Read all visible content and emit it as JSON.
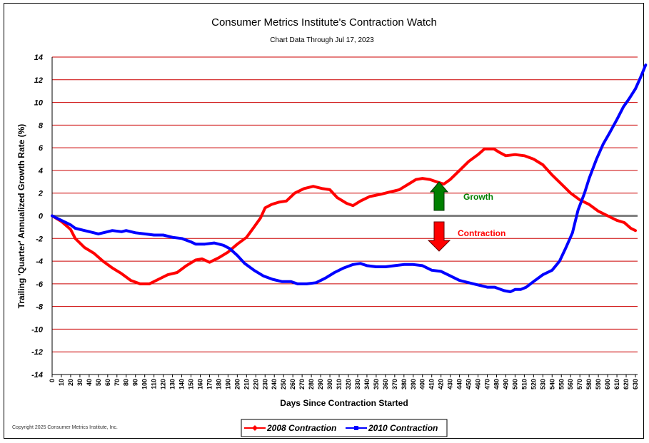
{
  "chart_data": {
    "type": "line",
    "title": "Consumer Metrics Institute's Contraction Watch",
    "subtitle": "Chart Data Through Jul 17, 2023",
    "xlabel": "Days Since Contraction Started",
    "ylabel": "Trailing 'Quarter' Annualized Growth Rate (%)",
    "xlim": [
      0,
      630
    ],
    "ylim": [
      -14,
      14
    ],
    "yticks": [
      14,
      12,
      10,
      8,
      6,
      4,
      2,
      0,
      -2,
      -4,
      -6,
      -8,
      -10,
      -12,
      -14
    ],
    "x_tick_step": 10,
    "grid": true,
    "legend_position": "bottom-center",
    "annotations": {
      "growth": "Growth",
      "contraction": "Contraction"
    },
    "series": [
      {
        "name": "2008 Contraction",
        "color": "#ff0000",
        "points": [
          [
            0,
            0
          ],
          [
            10,
            -0.5
          ],
          [
            20,
            -1.2
          ],
          [
            25,
            -2.0
          ],
          [
            35,
            -2.8
          ],
          [
            45,
            -3.3
          ],
          [
            55,
            -4.0
          ],
          [
            65,
            -4.6
          ],
          [
            75,
            -5.1
          ],
          [
            85,
            -5.7
          ],
          [
            95,
            -6.0
          ],
          [
            105,
            -6.0
          ],
          [
            115,
            -5.6
          ],
          [
            125,
            -5.2
          ],
          [
            135,
            -5.0
          ],
          [
            145,
            -4.4
          ],
          [
            155,
            -3.9
          ],
          [
            162,
            -3.8
          ],
          [
            170,
            -4.1
          ],
          [
            180,
            -3.7
          ],
          [
            190,
            -3.2
          ],
          [
            200,
            -2.5
          ],
          [
            210,
            -1.9
          ],
          [
            218,
            -1.0
          ],
          [
            225,
            -0.2
          ],
          [
            230,
            0.7
          ],
          [
            237,
            1.0
          ],
          [
            245,
            1.2
          ],
          [
            253,
            1.3
          ],
          [
            262,
            2.0
          ],
          [
            272,
            2.4
          ],
          [
            282,
            2.6
          ],
          [
            292,
            2.4
          ],
          [
            300,
            2.3
          ],
          [
            308,
            1.6
          ],
          [
            318,
            1.1
          ],
          [
            325,
            0.9
          ],
          [
            333,
            1.3
          ],
          [
            343,
            1.7
          ],
          [
            355,
            1.9
          ],
          [
            365,
            2.1
          ],
          [
            375,
            2.3
          ],
          [
            385,
            2.8
          ],
          [
            393,
            3.2
          ],
          [
            400,
            3.3
          ],
          [
            408,
            3.2
          ],
          [
            415,
            3.0
          ],
          [
            423,
            2.8
          ],
          [
            430,
            3.2
          ],
          [
            440,
            4.0
          ],
          [
            450,
            4.8
          ],
          [
            460,
            5.4
          ],
          [
            467,
            5.9
          ],
          [
            477,
            5.9
          ],
          [
            483,
            5.6
          ],
          [
            490,
            5.3
          ],
          [
            500,
            5.4
          ],
          [
            510,
            5.3
          ],
          [
            520,
            5.0
          ],
          [
            530,
            4.5
          ],
          [
            540,
            3.6
          ],
          [
            550,
            2.8
          ],
          [
            560,
            2.0
          ],
          [
            570,
            1.4
          ],
          [
            580,
            1.0
          ],
          [
            590,
            0.4
          ],
          [
            600,
            0.0
          ],
          [
            610,
            -0.4
          ],
          [
            618,
            -0.6
          ],
          [
            625,
            -1.1
          ],
          [
            630,
            -1.3
          ]
        ]
      },
      {
        "name": "2010 Contraction",
        "color": "#0000ff",
        "points": [
          [
            0,
            0
          ],
          [
            10,
            -0.4
          ],
          [
            20,
            -0.8
          ],
          [
            25,
            -1.1
          ],
          [
            35,
            -1.3
          ],
          [
            45,
            -1.5
          ],
          [
            50,
            -1.6
          ],
          [
            60,
            -1.4
          ],
          [
            65,
            -1.3
          ],
          [
            75,
            -1.4
          ],
          [
            80,
            -1.3
          ],
          [
            90,
            -1.5
          ],
          [
            100,
            -1.6
          ],
          [
            110,
            -1.7
          ],
          [
            120,
            -1.7
          ],
          [
            130,
            -1.9
          ],
          [
            140,
            -2.0
          ],
          [
            150,
            -2.3
          ],
          [
            155,
            -2.5
          ],
          [
            165,
            -2.5
          ],
          [
            175,
            -2.4
          ],
          [
            185,
            -2.6
          ],
          [
            192,
            -2.9
          ],
          [
            200,
            -3.5
          ],
          [
            208,
            -4.2
          ],
          [
            218,
            -4.8
          ],
          [
            228,
            -5.3
          ],
          [
            238,
            -5.6
          ],
          [
            248,
            -5.8
          ],
          [
            258,
            -5.8
          ],
          [
            265,
            -6.0
          ],
          [
            275,
            -6.0
          ],
          [
            285,
            -5.9
          ],
          [
            295,
            -5.5
          ],
          [
            305,
            -5.0
          ],
          [
            315,
            -4.6
          ],
          [
            325,
            -4.3
          ],
          [
            333,
            -4.2
          ],
          [
            340,
            -4.4
          ],
          [
            350,
            -4.5
          ],
          [
            360,
            -4.5
          ],
          [
            370,
            -4.4
          ],
          [
            380,
            -4.3
          ],
          [
            390,
            -4.3
          ],
          [
            400,
            -4.4
          ],
          [
            410,
            -4.8
          ],
          [
            420,
            -4.9
          ],
          [
            430,
            -5.3
          ],
          [
            440,
            -5.7
          ],
          [
            450,
            -5.9
          ],
          [
            460,
            -6.1
          ],
          [
            470,
            -6.3
          ],
          [
            478,
            -6.3
          ],
          [
            488,
            -6.6
          ],
          [
            495,
            -6.7
          ],
          [
            500,
            -6.5
          ],
          [
            506,
            -6.5
          ],
          [
            512,
            -6.3
          ],
          [
            520,
            -5.8
          ],
          [
            530,
            -5.2
          ],
          [
            540,
            -4.8
          ],
          [
            548,
            -4.0
          ],
          [
            555,
            -2.8
          ],
          [
            562,
            -1.5
          ],
          [
            568,
            0.5
          ],
          [
            575,
            2.0
          ],
          [
            580,
            3.3
          ],
          [
            588,
            5.0
          ],
          [
            595,
            6.3
          ],
          [
            602,
            7.3
          ],
          [
            610,
            8.5
          ],
          [
            617,
            9.6
          ],
          [
            623,
            10.3
          ],
          [
            630,
            11.2
          ],
          [
            636,
            12.3
          ],
          [
            641,
            13.3
          ]
        ]
      }
    ]
  },
  "copyright": "Copyright 2025 Consumer Metrics Institute, Inc."
}
